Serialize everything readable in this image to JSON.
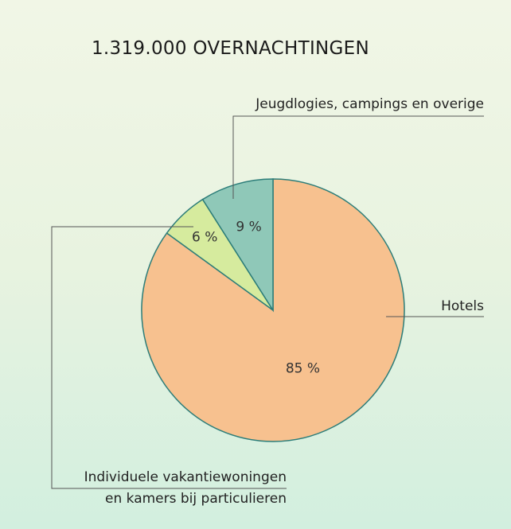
{
  "chart_data": {
    "type": "pie",
    "title": "1.319.000 OVERNACHTINGEN",
    "categories": [
      "Hotels",
      "Individuele vakantiewoningen\nen kamers bij particulieren",
      "Jeugdlogies, campings en overige"
    ],
    "values": [
      85,
      6,
      9
    ],
    "value_labels": [
      "85 %",
      "6 %",
      "9 %"
    ],
    "colors": [
      "#f7c18f",
      "#d6eb9e",
      "#8fc8b8"
    ]
  }
}
